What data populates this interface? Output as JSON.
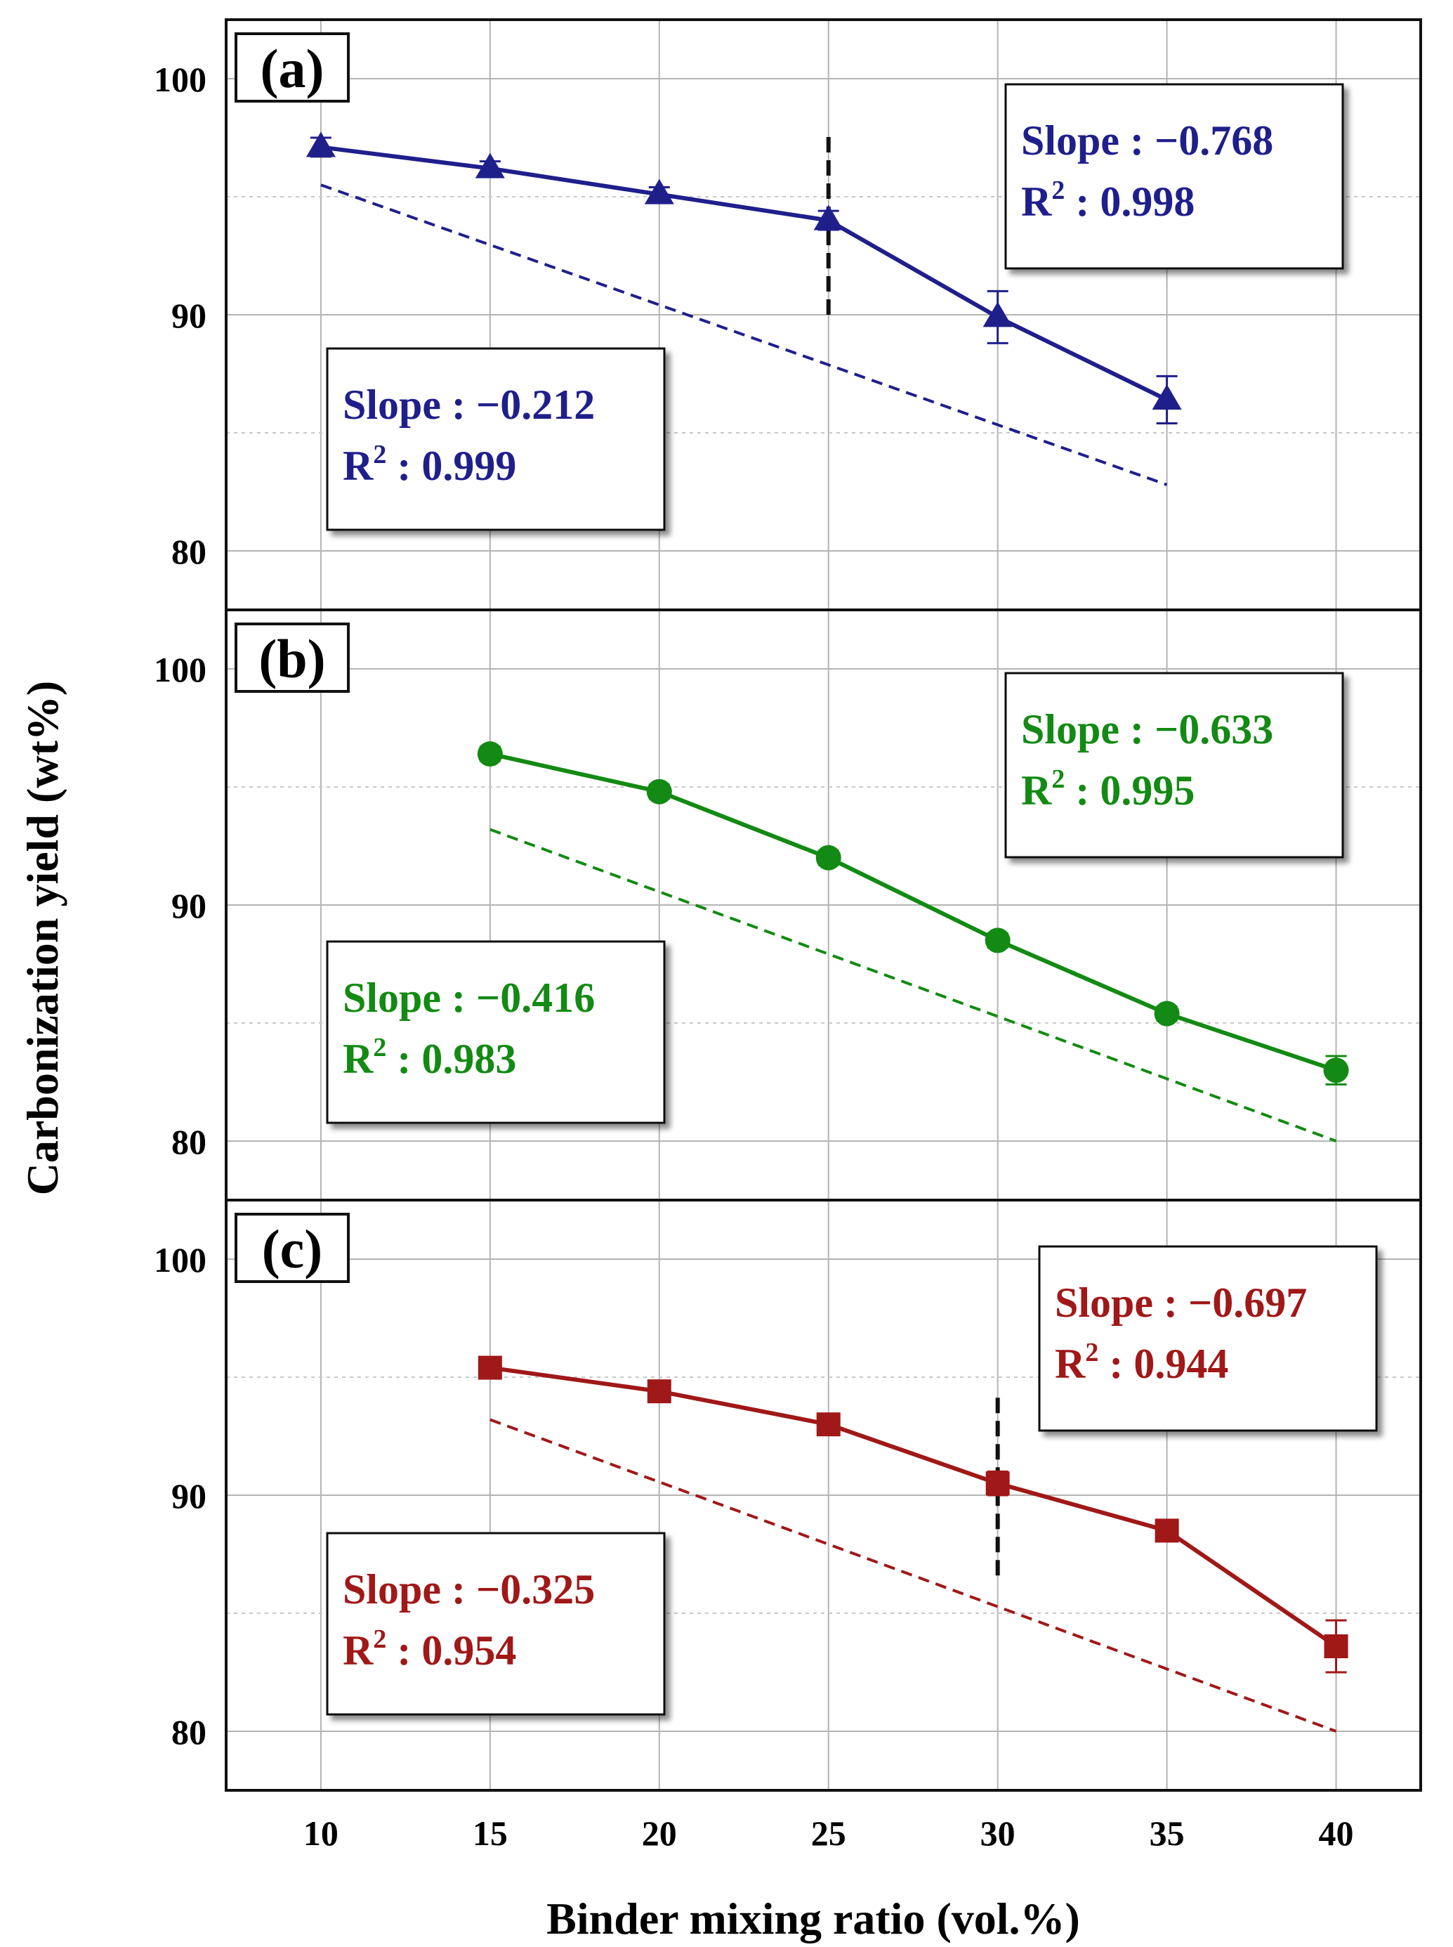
{
  "chart_data": [
    {
      "type": "line",
      "panel_label": "(a)",
      "color": "#1f1f8c",
      "marker": "triangle",
      "x_ticks": [
        "10",
        "15",
        "20",
        "25",
        "30",
        "35",
        "40"
      ],
      "y_ticks": [
        "80",
        "90",
        "100"
      ],
      "xlim": [
        7.2,
        42.5
      ],
      "ylim": [
        77.5,
        102.5
      ],
      "series": [
        {
          "x": [
            10,
            15,
            20,
            25,
            30,
            35
          ],
          "y": [
            97.1,
            96.2,
            95.1,
            94.0,
            89.9,
            86.4
          ],
          "error": [
            0.4,
            0.3,
            0.3,
            0.4,
            1.1,
            1.0
          ]
        }
      ],
      "fit_segments": [
        [
          10,
          25
        ],
        [
          25,
          35
        ]
      ],
      "reference_line": {
        "x": [
          10,
          35
        ],
        "y": [
          95.5,
          82.8
        ]
      },
      "breakpoint": {
        "x": 25,
        "y_range": [
          90.0,
          97.7
        ]
      },
      "annotations": [
        {
          "slope_text": "Slope : −0.768",
          "r2_prefix": "R",
          "r2_exp": "2",
          "r2_text": " : 0.998"
        },
        {
          "slope_text": "Slope : −0.212",
          "r2_prefix": "R",
          "r2_exp": "2",
          "r2_text": " : 0.999"
        }
      ]
    },
    {
      "type": "line",
      "panel_label": "(b)",
      "color": "#138a13",
      "marker": "circle",
      "x_ticks": [
        "10",
        "15",
        "20",
        "25",
        "30",
        "35",
        "40"
      ],
      "y_ticks": [
        "80",
        "90",
        "100"
      ],
      "xlim": [
        7.2,
        42.5
      ],
      "ylim": [
        77.5,
        102.5
      ],
      "series": [
        {
          "x": [
            15,
            20,
            25,
            30,
            35,
            40
          ],
          "y": [
            96.4,
            94.8,
            92.0,
            88.5,
            85.4,
            83.0
          ],
          "error": [
            0.3,
            0.3,
            0.3,
            0.3,
            0.3,
            0.6
          ]
        }
      ],
      "fit_segments": [
        [
          15,
          40
        ]
      ],
      "reference_line": {
        "x": [
          15,
          40
        ],
        "y": [
          93.2,
          80.0
        ]
      },
      "annotations": [
        {
          "slope_text": "Slope : −0.633",
          "r2_prefix": "R",
          "r2_exp": "2",
          "r2_text": " : 0.995"
        },
        {
          "slope_text": "Slope : −0.416",
          "r2_prefix": "R",
          "r2_exp": "2",
          "r2_text": " : 0.983"
        }
      ]
    },
    {
      "type": "line",
      "panel_label": "(c)",
      "color": "#a01818",
      "marker": "square",
      "x_ticks": [
        "10",
        "15",
        "20",
        "25",
        "30",
        "35",
        "40"
      ],
      "y_ticks": [
        "80",
        "90",
        "100"
      ],
      "xlim": [
        7.2,
        42.5
      ],
      "ylim": [
        77.5,
        102.5
      ],
      "series": [
        {
          "x": [
            15,
            20,
            25,
            30,
            35,
            40
          ],
          "y": [
            95.4,
            94.4,
            93.0,
            90.5,
            88.5,
            83.6
          ],
          "error": [
            0.3,
            0.3,
            0.3,
            0.5,
            0.3,
            1.1
          ]
        }
      ],
      "fit_segments": [
        [
          15,
          30
        ],
        [
          30,
          40
        ]
      ],
      "reference_line": {
        "x": [
          15,
          40
        ],
        "y": [
          93.2,
          80.0
        ]
      },
      "breakpoint": {
        "x": 30,
        "y_range": [
          86.6,
          94.3
        ]
      },
      "annotations": [
        {
          "slope_text": "Slope : −0.697",
          "r2_prefix": "R",
          "r2_exp": "2",
          "r2_text": " : 0.944"
        },
        {
          "slope_text": "Slope : −0.325",
          "r2_prefix": "R",
          "r2_exp": "2",
          "r2_text": " : 0.954"
        }
      ]
    }
  ],
  "xlabel": "Binder mixing ratio (vol.%)",
  "ylabel": "Carbonization yield (wt%)"
}
